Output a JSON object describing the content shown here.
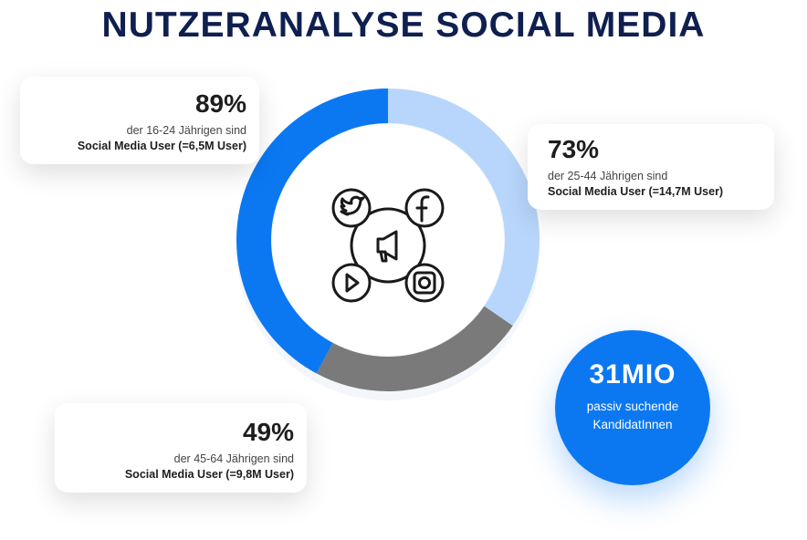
{
  "title": "NUTZERANALYSE SOCIAL MEDIA",
  "colors": {
    "blue": "#0b78f2",
    "light_blue": "#b8d6fb",
    "gray": "#7a7a7a",
    "navy": "#0f1f4f"
  },
  "chart_data": {
    "type": "pie",
    "variant": "donut",
    "segments": [
      {
        "name": "16-24",
        "value": 89,
        "color": "#0b78f2"
      },
      {
        "name": "25-44",
        "value": 73,
        "color": "#b8d6fb"
      },
      {
        "name": "45-64",
        "value": 49,
        "color": "#7a7a7a"
      }
    ],
    "center_icons": [
      "twitter-icon",
      "facebook-icon",
      "megaphone-icon",
      "youtube-icon",
      "instagram-icon"
    ]
  },
  "callouts": [
    {
      "pct": "89%",
      "line1": "der 16-24 Jährigen sind",
      "line2": "Social Media User (=6,5M User)"
    },
    {
      "pct": "73%",
      "line1": "der 25-44 Jährigen sind",
      "line2": "Social Media User (=14,7M User)"
    },
    {
      "pct": "49%",
      "line1": "der 45-64 Jährigen sind",
      "line2": "Social Media User (=9,8M User)"
    }
  ],
  "highlight": {
    "value": "31MIO",
    "line1": "passiv suchende",
    "line2": "KandidatInnen"
  }
}
